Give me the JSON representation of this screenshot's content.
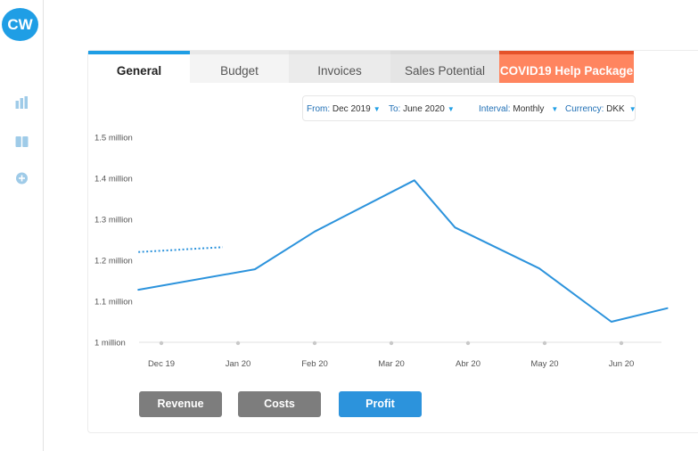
{
  "sidebar": {
    "avatar_initials": "CW",
    "icons": [
      "bar-chart-icon",
      "book-icon",
      "add-circle-icon"
    ]
  },
  "tabs": [
    {
      "label": "General",
      "active": true
    },
    {
      "label": "Budget"
    },
    {
      "label": "Invoices"
    },
    {
      "label": "Sales Potential"
    },
    {
      "label": "COVID19 Help Package",
      "accent": "#ff855f"
    }
  ],
  "filters": {
    "from_label": "From:",
    "from_value": "Dec 2019",
    "to_label": "To:",
    "to_value": "June 2020",
    "interval_label": "Interval:",
    "interval_value": "Monthly",
    "currency_label": "Currency:",
    "currency_value": "DKK"
  },
  "buttons": {
    "revenue": "Revenue",
    "costs": "Costs",
    "profit": "Profit"
  },
  "colors": {
    "accent": "#1f9ee5",
    "line": "#2c93dc",
    "button_inactive": "#7d7d7d",
    "covid_tab": "#ff855f"
  },
  "chart_data": {
    "type": "line",
    "categories": [
      "Dec 19",
      "Jan 20",
      "Feb 20",
      "Mar 20",
      "Abr 20",
      "May 20",
      "Jun 20"
    ],
    "y_ticks": [
      {
        "value": 1.0,
        "label": "1 million"
      },
      {
        "value": 1.1,
        "label": "1.1 million"
      },
      {
        "value": 1.2,
        "label": "1.2 million"
      },
      {
        "value": 1.3,
        "label": "1.3 million"
      },
      {
        "value": 1.4,
        "label": "1.4 million"
      },
      {
        "value": 1.5,
        "label": "1.5 million"
      }
    ],
    "ylim": [
      1.0,
      1.5
    ],
    "y_unit": "million",
    "series": [
      {
        "style": "solid",
        "points": [
          {
            "x": -0.3,
            "y": 1.128
          },
          {
            "x": 1.22,
            "y": 1.178
          },
          {
            "x": 2.0,
            "y": 1.27
          },
          {
            "x": 3.3,
            "y": 1.395
          },
          {
            "x": 3.83,
            "y": 1.28
          },
          {
            "x": 4.93,
            "y": 1.18
          },
          {
            "x": 5.87,
            "y": 1.05
          },
          {
            "x": 6.6,
            "y": 1.083
          }
        ]
      },
      {
        "style": "dotted",
        "points": [
          {
            "x": -0.3,
            "y": 1.22
          },
          {
            "x": 0.8,
            "y": 1.232
          }
        ]
      }
    ],
    "grid": false
  }
}
